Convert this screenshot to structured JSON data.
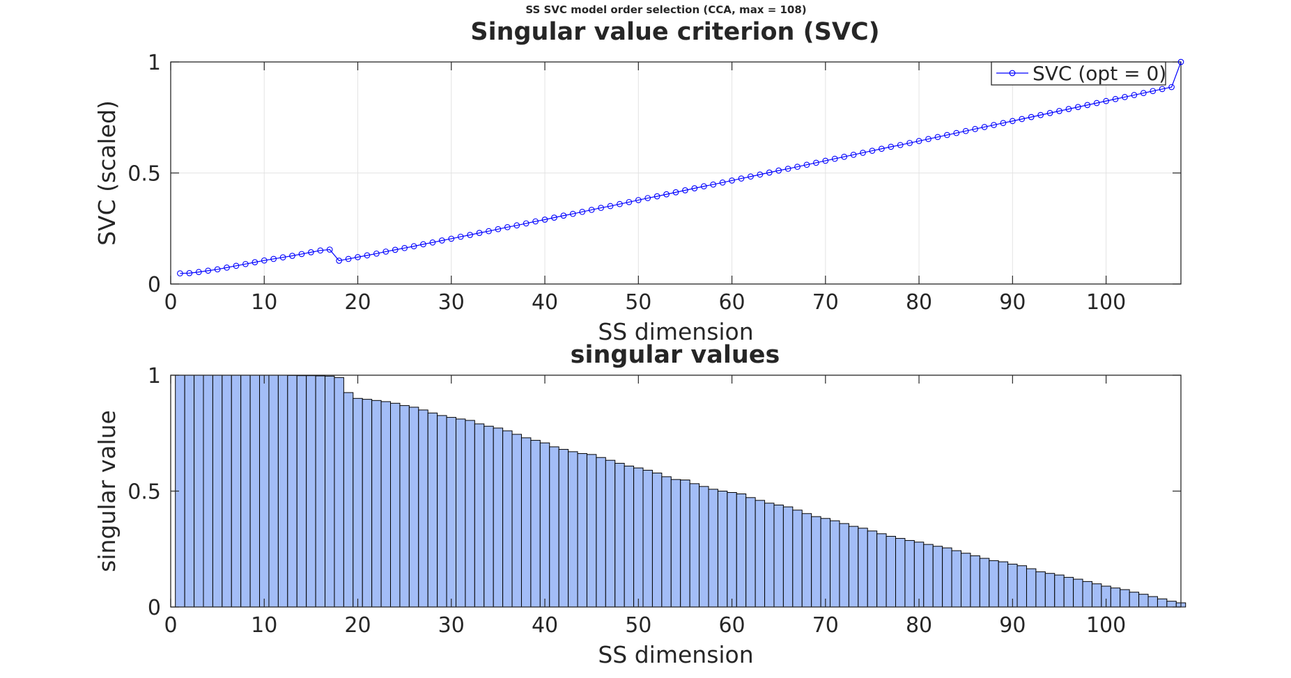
{
  "figure": {
    "suptitle": "SS SVC model order selection (CCA, max = 108)"
  },
  "chart_data": [
    {
      "type": "line",
      "title": "Singular value criterion (SVC)",
      "xlabel": "SS dimension",
      "ylabel": "SVC (scaled)",
      "xlim": [
        0,
        108
      ],
      "ylim": [
        0,
        1
      ],
      "xticks": [
        0,
        10,
        20,
        30,
        40,
        50,
        60,
        70,
        80,
        90,
        100
      ],
      "yticks": [
        0,
        0.5,
        1
      ],
      "xtick_labels": [
        "0",
        "10",
        "20",
        "30",
        "40",
        "50",
        "60",
        "70",
        "80",
        "90",
        "100"
      ],
      "ytick_labels": [
        "0",
        "0.5",
        "1"
      ],
      "grid": true,
      "legend_position": "top-right",
      "color": "#0000ff",
      "marker": "circle",
      "series": [
        {
          "name": "SVC (opt = 0)",
          "x": [
            1,
            2,
            3,
            4,
            5,
            6,
            7,
            8,
            9,
            10,
            11,
            12,
            13,
            14,
            15,
            16,
            17,
            18,
            19,
            20,
            21,
            22,
            23,
            24,
            25,
            26,
            27,
            28,
            29,
            30,
            31,
            32,
            33,
            34,
            35,
            36,
            37,
            38,
            39,
            40,
            41,
            42,
            43,
            44,
            45,
            46,
            47,
            48,
            49,
            50,
            51,
            52,
            53,
            54,
            55,
            56,
            57,
            58,
            59,
            60,
            61,
            62,
            63,
            64,
            65,
            66,
            67,
            68,
            69,
            70,
            71,
            72,
            73,
            74,
            75,
            76,
            77,
            78,
            79,
            80,
            81,
            82,
            83,
            84,
            85,
            86,
            87,
            88,
            89,
            90,
            91,
            92,
            93,
            94,
            95,
            96,
            97,
            98,
            99,
            100,
            101,
            102,
            103,
            104,
            105,
            106,
            107,
            108
          ],
          "values": [
            0.048,
            0.049,
            0.054,
            0.06,
            0.066,
            0.074,
            0.082,
            0.09,
            0.098,
            0.106,
            0.113,
            0.12,
            0.127,
            0.135,
            0.143,
            0.151,
            0.155,
            0.105,
            0.113,
            0.121,
            0.129,
            0.137,
            0.146,
            0.154,
            0.162,
            0.17,
            0.179,
            0.187,
            0.196,
            0.204,
            0.213,
            0.221,
            0.23,
            0.238,
            0.247,
            0.256,
            0.264,
            0.273,
            0.282,
            0.29,
            0.299,
            0.308,
            0.316,
            0.325,
            0.334,
            0.343,
            0.351,
            0.36,
            0.369,
            0.378,
            0.387,
            0.395,
            0.404,
            0.413,
            0.422,
            0.431,
            0.44,
            0.448,
            0.457,
            0.466,
            0.475,
            0.484,
            0.493,
            0.502,
            0.511,
            0.519,
            0.528,
            0.537,
            0.546,
            0.555,
            0.564,
            0.573,
            0.582,
            0.591,
            0.6,
            0.609,
            0.618,
            0.626,
            0.635,
            0.644,
            0.653,
            0.662,
            0.671,
            0.68,
            0.689,
            0.698,
            0.707,
            0.716,
            0.725,
            0.734,
            0.743,
            0.752,
            0.761,
            0.77,
            0.779,
            0.788,
            0.797,
            0.806,
            0.815,
            0.824,
            0.833,
            0.842,
            0.851,
            0.86,
            0.869,
            0.878,
            0.887,
            1.0
          ]
        }
      ]
    },
    {
      "type": "bar",
      "title": "singular values",
      "xlabel": "SS dimension",
      "ylabel": "singular value",
      "xlim": [
        0,
        108
      ],
      "ylim": [
        0,
        1
      ],
      "xticks": [
        0,
        10,
        20,
        30,
        40,
        50,
        60,
        70,
        80,
        90,
        100
      ],
      "yticks": [
        0,
        0.5,
        1
      ],
      "xtick_labels": [
        "0",
        "10",
        "20",
        "30",
        "40",
        "50",
        "60",
        "70",
        "80",
        "90",
        "100"
      ],
      "ytick_labels": [
        "0",
        "0.5",
        "1"
      ],
      "grid": false,
      "color": "#a3bdf7",
      "edge_color": "#000000",
      "x": [
        1,
        2,
        3,
        4,
        5,
        6,
        7,
        8,
        9,
        10,
        11,
        12,
        13,
        14,
        15,
        16,
        17,
        18,
        19,
        20,
        21,
        22,
        23,
        24,
        25,
        26,
        27,
        28,
        29,
        30,
        31,
        32,
        33,
        34,
        35,
        36,
        37,
        38,
        39,
        40,
        41,
        42,
        43,
        44,
        45,
        46,
        47,
        48,
        49,
        50,
        51,
        52,
        53,
        54,
        55,
        56,
        57,
        58,
        59,
        60,
        61,
        62,
        63,
        64,
        65,
        66,
        67,
        68,
        69,
        70,
        71,
        72,
        73,
        74,
        75,
        76,
        77,
        78,
        79,
        80,
        81,
        82,
        83,
        84,
        85,
        86,
        87,
        88,
        89,
        90,
        91,
        92,
        93,
        94,
        95,
        96,
        97,
        98,
        99,
        100,
        101,
        102,
        103,
        104,
        105,
        106,
        107,
        108
      ],
      "values": [
        1.0,
        1.0,
        1.0,
        1.0,
        1.0,
        1.0,
        1.0,
        1.0,
        1.0,
        1.0,
        1.0,
        1.0,
        0.999,
        0.998,
        0.998,
        0.997,
        0.996,
        0.99,
        0.925,
        0.9,
        0.896,
        0.891,
        0.886,
        0.879,
        0.869,
        0.862,
        0.85,
        0.837,
        0.826,
        0.818,
        0.811,
        0.805,
        0.79,
        0.78,
        0.772,
        0.76,
        0.745,
        0.73,
        0.719,
        0.708,
        0.691,
        0.68,
        0.67,
        0.662,
        0.658,
        0.645,
        0.633,
        0.62,
        0.608,
        0.6,
        0.59,
        0.578,
        0.562,
        0.55,
        0.548,
        0.532,
        0.52,
        0.508,
        0.5,
        0.494,
        0.488,
        0.472,
        0.46,
        0.448,
        0.44,
        0.432,
        0.418,
        0.403,
        0.39,
        0.382,
        0.372,
        0.36,
        0.348,
        0.34,
        0.328,
        0.316,
        0.305,
        0.296,
        0.287,
        0.28,
        0.27,
        0.262,
        0.255,
        0.243,
        0.232,
        0.221,
        0.21,
        0.2,
        0.195,
        0.185,
        0.178,
        0.165,
        0.152,
        0.145,
        0.138,
        0.128,
        0.12,
        0.11,
        0.1,
        0.09,
        0.082,
        0.075,
        0.064,
        0.055,
        0.045,
        0.035,
        0.025,
        0.018
      ]
    }
  ]
}
